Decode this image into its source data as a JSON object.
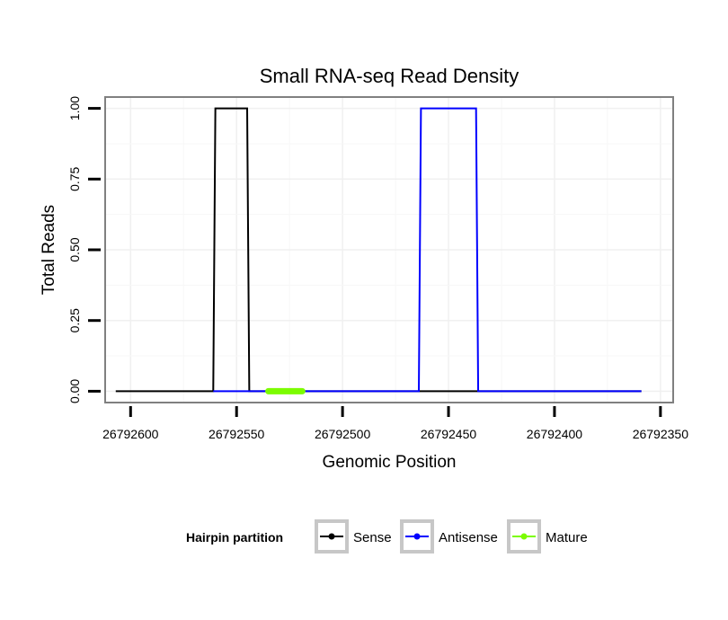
{
  "chart_data": {
    "type": "line",
    "title": "Small RNA-seq Read Density",
    "xlabel": "Genomic Position",
    "ylabel": "Total Reads",
    "xlim": [
      26792612,
      26792344
    ],
    "ylim": [
      -0.04,
      1.04
    ],
    "x_ticks": [
      26792600,
      26792550,
      26792500,
      26792450,
      26792400,
      26792350
    ],
    "x_tick_labels": [
      "26792600",
      "26792550",
      "26792500",
      "26792450",
      "26792400",
      "26792350"
    ],
    "y_ticks": [
      0,
      0.25,
      0.5,
      0.75,
      1
    ],
    "y_tick_labels": [
      "0.00",
      "0.25",
      "0.50",
      "0.75",
      "1.00"
    ],
    "grid": true,
    "legend": {
      "title": "Hairpin partition",
      "position": "bottom"
    },
    "series": [
      {
        "name": "Sense",
        "color": "#000000",
        "x": [
          26792607,
          26792561,
          26792560,
          26792545,
          26792544,
          26792359
        ],
        "y": [
          0,
          0,
          1,
          1,
          0,
          0
        ]
      },
      {
        "name": "Antisense",
        "color": "#0000ff",
        "x": [
          26792561,
          26792544,
          26792544,
          26792464,
          26792463,
          26792437,
          26792436,
          26792359
        ],
        "y": [
          0,
          0,
          0,
          0,
          1,
          1,
          0,
          0
        ]
      },
      {
        "name": "Mature",
        "color": "#7cfc00",
        "x": [
          26792535,
          26792519
        ],
        "y": [
          0,
          0
        ]
      }
    ]
  }
}
